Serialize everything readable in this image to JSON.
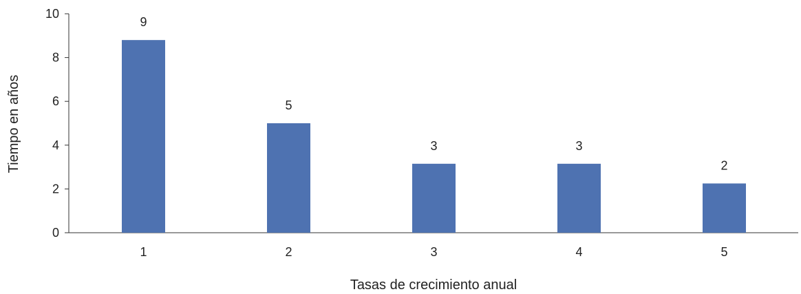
{
  "chart_data": {
    "type": "bar",
    "categories": [
      "1",
      "2",
      "3",
      "4",
      "5"
    ],
    "values": [
      8.8,
      5.0,
      3.15,
      3.15,
      2.25
    ],
    "data_labels": [
      "9",
      "5",
      "3",
      "3",
      "2"
    ],
    "xlabel": "Tasas de crecimiento anual",
    "ylabel": "Tiempo en años",
    "ylim": [
      0,
      10
    ],
    "yticks": [
      "0",
      "2",
      "4",
      "6",
      "8",
      "10"
    ],
    "grid": false,
    "bar_color": "#4e72b1"
  }
}
